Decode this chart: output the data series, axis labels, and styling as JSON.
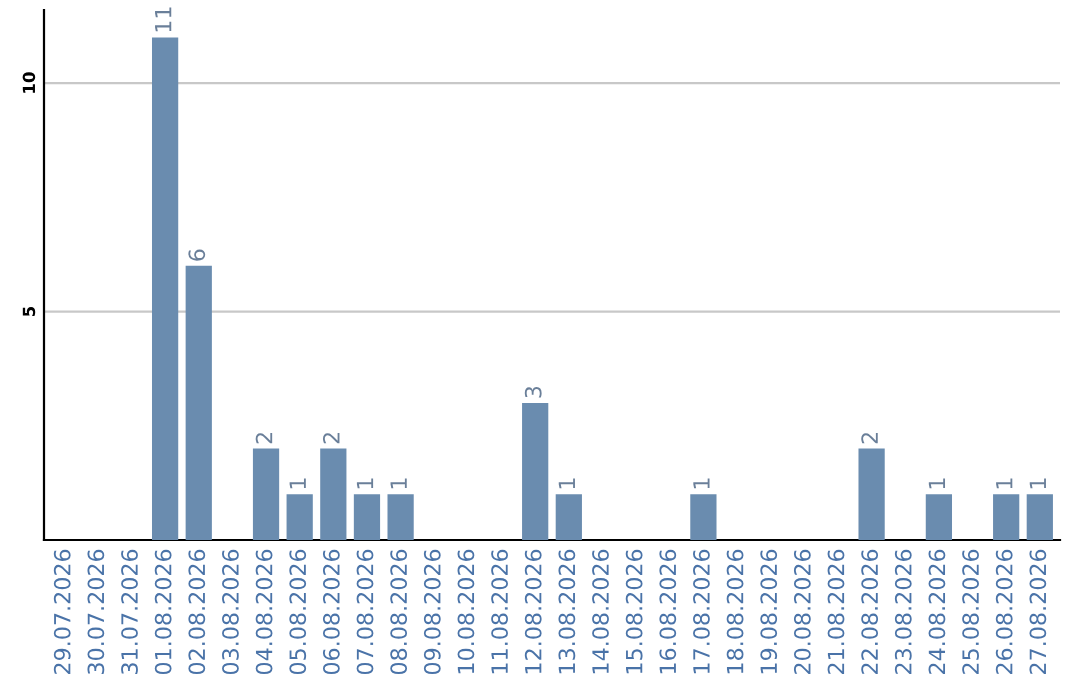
{
  "chart_data": {
    "type": "bar",
    "categories": [
      "29.07.2026",
      "30.07.2026",
      "31.07.2026",
      "01.08.2026",
      "02.08.2026",
      "03.08.2026",
      "04.08.2026",
      "05.08.2026",
      "06.08.2026",
      "07.08.2026",
      "08.08.2026",
      "09.08.2026",
      "10.08.2026",
      "11.08.2026",
      "12.08.2026",
      "13.08.2026",
      "14.08.2026",
      "15.08.2026",
      "16.08.2026",
      "17.08.2026",
      "18.08.2026",
      "19.08.2026",
      "20.08.2026",
      "21.08.2026",
      "22.08.2026",
      "23.08.2026",
      "24.08.2026",
      "25.08.2026",
      "26.08.2026",
      "27.08.2026"
    ],
    "values": [
      0,
      0,
      0,
      11,
      6,
      0,
      2,
      1,
      2,
      1,
      1,
      0,
      0,
      0,
      3,
      1,
      0,
      0,
      0,
      1,
      0,
      0,
      0,
      0,
      2,
      0,
      1,
      0,
      1,
      1
    ],
    "value_labels": [
      null,
      null,
      null,
      "11",
      "6",
      null,
      "2",
      "1",
      "2",
      "1",
      "1",
      null,
      null,
      null,
      "3",
      "1",
      null,
      null,
      null,
      "1",
      null,
      null,
      null,
      null,
      "2",
      null,
      "1",
      null,
      "1",
      "1"
    ],
    "color": "#6a8caf",
    "ylim": [
      0,
      11.6
    ],
    "yticks": [
      5,
      10
    ],
    "grid": "y",
    "legend": false
  }
}
